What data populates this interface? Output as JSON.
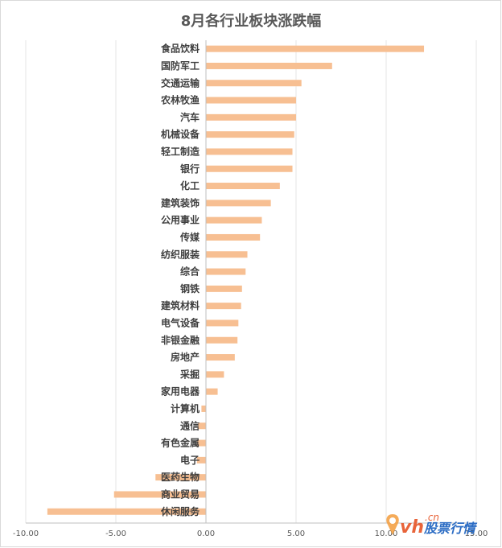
{
  "chart_data": {
    "type": "bar",
    "orientation": "horizontal",
    "title": "8月各行业板块涨跌幅",
    "categories": [
      "食品饮料",
      "国防军工",
      "交通运输",
      "农林牧渔",
      "汽车",
      "机械设备",
      "轻工制造",
      "银行",
      "化工",
      "建筑装饰",
      "公用事业",
      "传媒",
      "纺织服装",
      "综合",
      "钢铁",
      "建筑材料",
      "电气设备",
      "非银金融",
      "房地产",
      "采掘",
      "家用电器",
      "计算机",
      "通信",
      "有色金属",
      "电子",
      "医药生物",
      "商业贸易",
      "休闲服务"
    ],
    "values": [
      12.1,
      7.0,
      5.3,
      5.0,
      5.0,
      4.9,
      4.8,
      4.8,
      4.1,
      3.6,
      3.1,
      3.0,
      2.3,
      2.2,
      2.0,
      1.95,
      1.8,
      1.75,
      1.6,
      1.0,
      0.65,
      -0.25,
      -0.45,
      -0.5,
      -0.5,
      -2.8,
      -5.1,
      -8.8
    ],
    "xlim": [
      -10,
      15
    ],
    "ticks": [
      "-10.00",
      "-5.00",
      "0.00",
      "5.00",
      "10.00",
      "15.00"
    ],
    "tick_values": [
      -10,
      -5,
      0,
      5,
      10,
      15
    ],
    "grid": true,
    "legend": "none",
    "bar_color": "#f7bf92",
    "grid_color": "#e6e6e6",
    "axis_color": "#bfbfbf"
  },
  "watermark": {
    "brand": "vh",
    "domain": ".cn",
    "text": "股票行情"
  }
}
